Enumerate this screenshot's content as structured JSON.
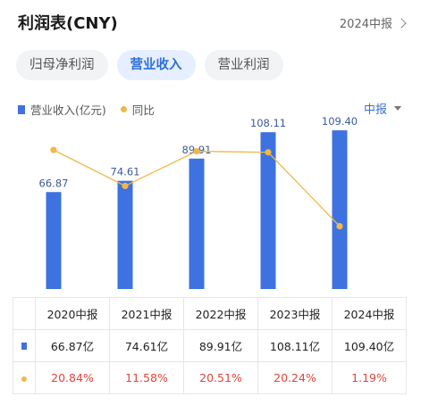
{
  "header": {
    "title": "利润表(CNY)",
    "period_link": "2024中报"
  },
  "tabs": [
    {
      "label": "归母净利润",
      "active": false
    },
    {
      "label": "营业收入",
      "active": true
    },
    {
      "label": "营业利润",
      "active": false
    }
  ],
  "legend": {
    "bar_label": "营业收入(亿元)",
    "line_label": "同比"
  },
  "report_select": {
    "value": "中报"
  },
  "colors": {
    "bar": "#3d72e0",
    "line": "#f0b84a",
    "negative_text": "#e0453a",
    "accent": "#2f6fdb"
  },
  "chart_data": {
    "type": "bar",
    "categories": [
      "2020中报",
      "2021中报",
      "2022中报",
      "2023中报",
      "2024中报"
    ],
    "series": [
      {
        "name": "营业收入(亿元)",
        "type": "bar",
        "values": [
          66.87,
          74.61,
          89.91,
          108.11,
          109.4
        ],
        "labels": [
          "66.87",
          "74.61",
          "89.91",
          "108.11",
          "109.40"
        ]
      },
      {
        "name": "同比",
        "type": "line",
        "values": [
          20.84,
          11.58,
          20.51,
          20.24,
          1.19
        ]
      }
    ],
    "ylim": [
      0,
      115
    ],
    "y2lim": [
      -15,
      28
    ],
    "grid": false,
    "legend_position": "top-left"
  },
  "table": {
    "headers": [
      "2020中报",
      "2021中报",
      "2022中报",
      "2023中报",
      "2024中报"
    ],
    "revenue_row": [
      "66.87亿",
      "74.61亿",
      "89.91亿",
      "108.11亿",
      "109.40亿"
    ],
    "yoy_row": [
      "20.84%",
      "11.58%",
      "20.51%",
      "20.24%",
      "1.19%"
    ]
  }
}
